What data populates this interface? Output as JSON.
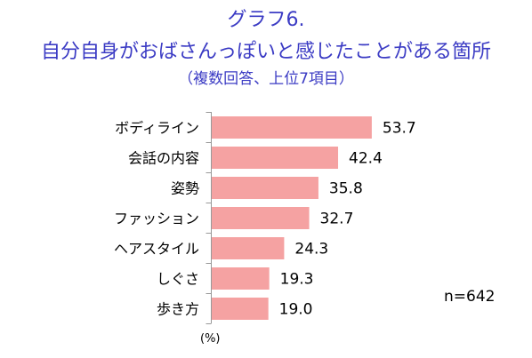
{
  "title": {
    "line1": "グラフ6.",
    "line2": "自分自身がおばさんっぽいと感じたことがある箇所",
    "line3": "（複数回答、上位7項目）",
    "color": "#3b3bc4"
  },
  "chart_data": {
    "type": "bar",
    "orientation": "horizontal",
    "categories": [
      "ボディライン",
      "会話の内容",
      "姿勢",
      "ファッション",
      "ヘアスタイル",
      "しぐさ",
      "歩き方"
    ],
    "values": [
      53.7,
      42.4,
      35.8,
      32.7,
      24.3,
      19.3,
      19.0
    ],
    "value_labels": [
      "53.7",
      "42.4",
      "35.8",
      "32.7",
      "24.3",
      "19.3",
      "19.0"
    ],
    "unit_label": "(%)",
    "sample_size": "n=642",
    "grid": false,
    "legend": "none",
    "colors": {
      "bar": "#f5a2a2",
      "axis": "#999999",
      "text": "#000000"
    }
  }
}
